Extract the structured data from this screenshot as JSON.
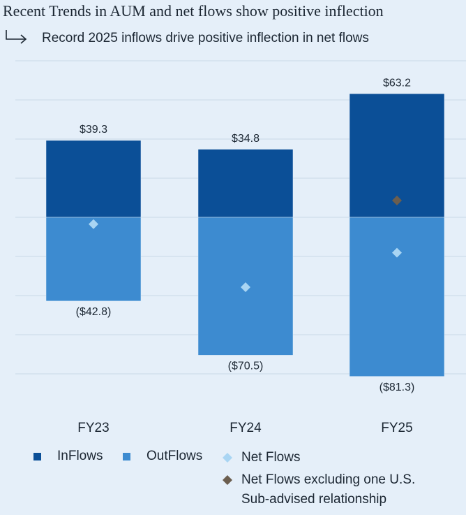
{
  "chart_data": {
    "type": "stacked_bar",
    "title": "Recent Trends in AUM and net flows show positive inflection",
    "subtitle": "Record 2025 inflows drive positive inflection in net flows",
    "categories": [
      "FY23",
      "FY24",
      "FY25"
    ],
    "ylim": [
      -100,
      80
    ],
    "yticks": [
      -80,
      -60,
      -40,
      -20,
      0,
      20,
      40,
      60,
      80
    ],
    "grid": true,
    "series": [
      {
        "name": "InFlows",
        "type": "bar",
        "color": "#0b4f97",
        "values": [
          39.3,
          34.8,
          63.2
        ],
        "value_labels": [
          "$39.3",
          "$34.8",
          "$63.2"
        ]
      },
      {
        "name": "OutFlows",
        "type": "bar",
        "color": "#3d8bd0",
        "values": [
          -42.8,
          -70.5,
          -81.3
        ],
        "value_labels": [
          "($42.8)",
          "($70.5)",
          "($81.3)"
        ]
      },
      {
        "name": "Net Flows",
        "type": "diamond",
        "color": "#a9d5f3",
        "values": [
          -3.5,
          -35.7,
          -18.1
        ]
      },
      {
        "name": "Net Flows excluding one U.S. Sub-advised relationship",
        "type": "diamond",
        "color": "#6b5e4f",
        "values": [
          null,
          null,
          8.6
        ]
      }
    ]
  }
}
